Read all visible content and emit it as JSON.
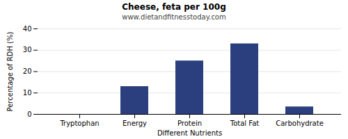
{
  "chart_data": {
    "type": "bar",
    "title": "Cheese, feta per 100g",
    "subtitle": "www.dietandfitnesstoday.com",
    "xlabel": "Different Nutrients",
    "ylabel": "Percentage of RDH (%)",
    "categories": [
      "Tryptophan",
      "Energy",
      "Protein",
      "Total Fat",
      "Carbohydrate"
    ],
    "values": [
      0,
      13,
      25,
      33,
      3.5
    ],
    "color": "#2b3f7e",
    "ylim": [
      0,
      40
    ],
    "yticks": [
      0,
      10,
      20,
      30,
      40
    ],
    "grid": true
  }
}
